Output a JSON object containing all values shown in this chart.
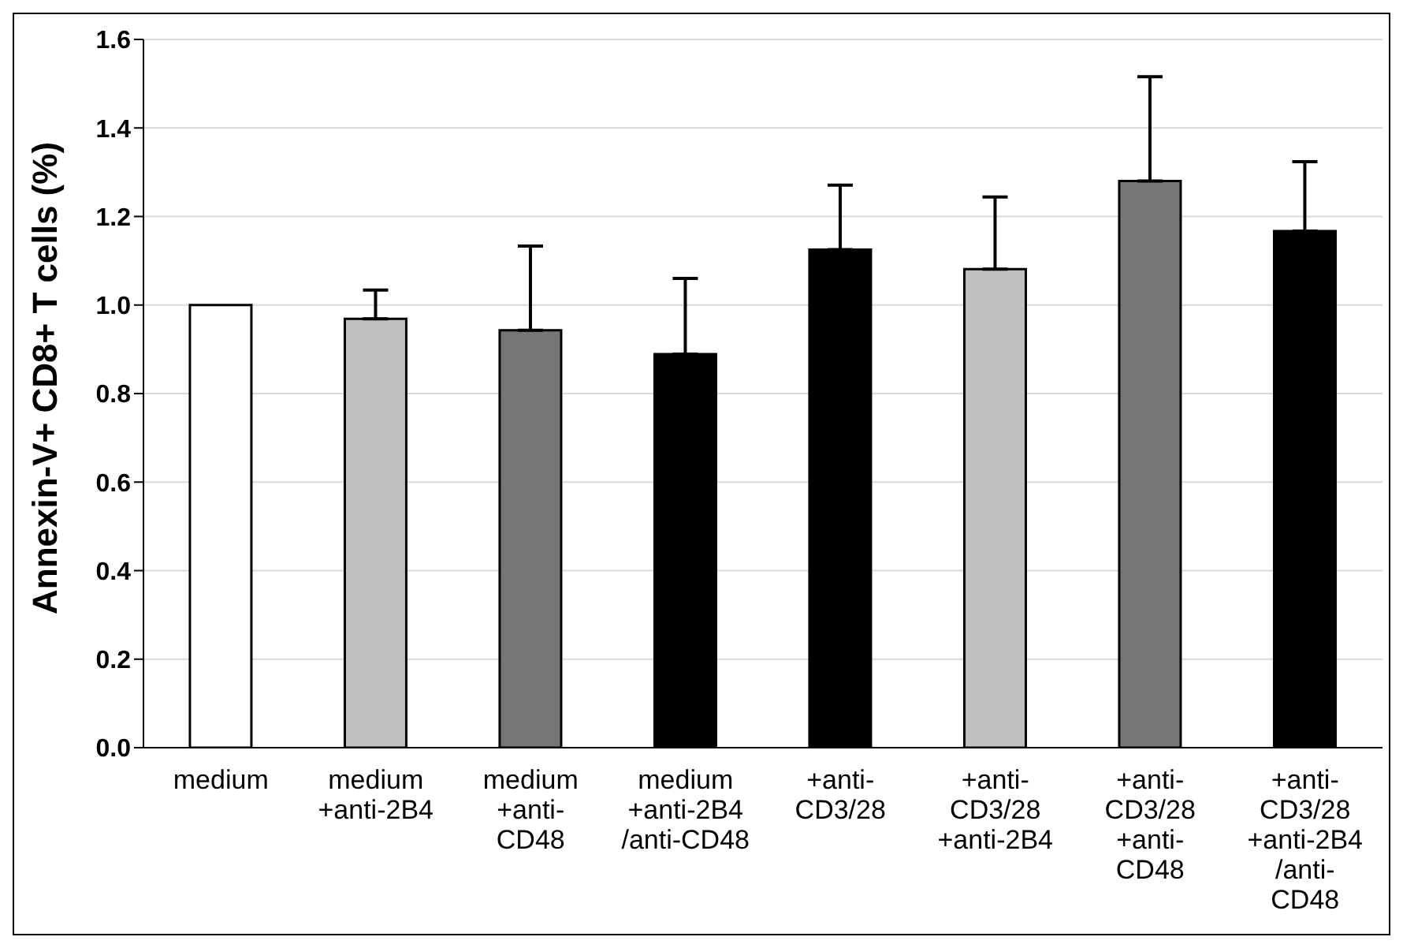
{
  "chart_data": {
    "type": "bar",
    "ylabel": "Annexin-V+ CD8+ T cells (%)",
    "categories": [
      "medium",
      "medium\n+anti-2B4",
      "medium\n+anti-\nCD48",
      "medium\n+anti-2B4\n/anti-CD48",
      "+anti-\nCD3/28",
      "+anti-\nCD3/28\n+anti-2B4",
      "+anti-\nCD3/28\n+anti-\nCD48",
      "+anti-\nCD3/28\n+anti-2B4\n/anti-\nCD48"
    ],
    "values": [
      1.0,
      0.969,
      0.943,
      0.889,
      1.125,
      1.081,
      1.28,
      1.167
    ],
    "colors": [
      "#ffffff",
      "#c0c0c0",
      "#767676",
      "#000000",
      "#000000",
      "#c0c0c0",
      "#767676",
      "#000000"
    ],
    "errors": [
      null,
      [
        0.969,
        1.034
      ],
      [
        0.943,
        1.133
      ],
      [
        0.889,
        1.06
      ],
      [
        1.125,
        1.271
      ],
      [
        1.081,
        1.244
      ],
      [
        1.28,
        1.516
      ],
      [
        1.167,
        1.324
      ]
    ],
    "ylim": [
      0,
      1.6
    ],
    "yticks": [
      {
        "value": 0,
        "label": "0.0"
      },
      0.2,
      0.4,
      0.6,
      0.8,
      {
        "value": 1,
        "label": "1.0"
      },
      1.2,
      1.4,
      1.6
    ],
    "grid": "y"
  }
}
